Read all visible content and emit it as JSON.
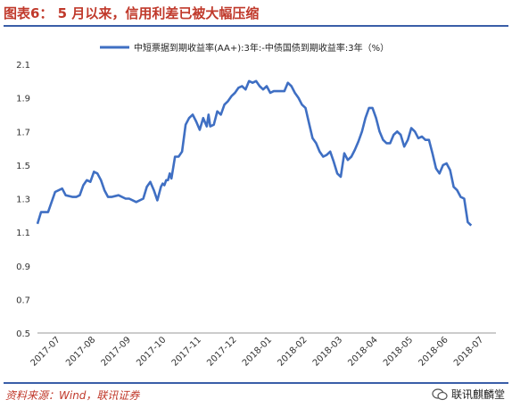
{
  "header": {
    "figure_no": "图表6：",
    "title_text": "5 月以来，信用利差已被大幅压缩"
  },
  "colors": {
    "title": "#c0392b",
    "rule": "#3a5ea8",
    "series": "#3f6fc3",
    "source": "#c0392b"
  },
  "footer": {
    "source": "资料来源：Wind，联讯证券",
    "watermark": "联讯麒麟堂",
    "watermark_icon": "wechat-icon"
  },
  "chart_data": {
    "type": "line",
    "title": "",
    "xlabel": "",
    "ylabel": "",
    "ylim": [
      0.5,
      2.1
    ],
    "yticks": [
      "0.5",
      "0.7",
      "0.9",
      "1.1",
      "1.3",
      "1.5",
      "1.7",
      "1.9",
      "2.1"
    ],
    "xticks": [
      "2017-07",
      "2017-08",
      "2017-09",
      "2017-10",
      "2017-11",
      "2017-12",
      "2018-01",
      "2018-02",
      "2018-03",
      "2018-04",
      "2018-05",
      "2018-06",
      "2018-07"
    ],
    "grid": false,
    "legend": "top",
    "series": [
      {
        "name": "中短票据到期收益率(AA+):3年:-中债国债到期收益率:3年（%）",
        "x": [
          0,
          0.1,
          0.3,
          0.5,
          0.7,
          0.8,
          1.0,
          1.1,
          1.2,
          1.3,
          1.4,
          1.5,
          1.6,
          1.7,
          1.8,
          1.9,
          2.0,
          2.1,
          2.3,
          2.5,
          2.6,
          2.8,
          3.0,
          3.1,
          3.2,
          3.3,
          3.4,
          3.5,
          3.55,
          3.6,
          3.65,
          3.7,
          3.75,
          3.8,
          3.9,
          4.0,
          4.1,
          4.2,
          4.3,
          4.4,
          4.5,
          4.6,
          4.7,
          4.8,
          4.85,
          4.9,
          5.0,
          5.1,
          5.2,
          5.3,
          5.4,
          5.5,
          5.6,
          5.7,
          5.8,
          5.9,
          6.0,
          6.1,
          6.2,
          6.3,
          6.4,
          6.5,
          6.6,
          6.7,
          6.8,
          6.9,
          7.0,
          7.1,
          7.2,
          7.3,
          7.4,
          7.5,
          7.6,
          7.7,
          7.8,
          7.9,
          8.0,
          8.1,
          8.2,
          8.3,
          8.4,
          8.5,
          8.6,
          8.7,
          8.8,
          8.9,
          9.0,
          9.1,
          9.2,
          9.3,
          9.4,
          9.5,
          9.6,
          9.7,
          9.8,
          9.9,
          10.0,
          10.1,
          10.2,
          10.3,
          10.4,
          10.5,
          10.6,
          10.7,
          10.8,
          10.9,
          11.0,
          11.1,
          11.2,
          11.3,
          11.4,
          11.5,
          11.6,
          11.7,
          11.8,
          11.9,
          12.0,
          12.1,
          12.2,
          12.3
        ],
        "values": [
          1.15,
          1.22,
          1.22,
          1.34,
          1.36,
          1.32,
          1.31,
          1.31,
          1.32,
          1.38,
          1.41,
          1.4,
          1.46,
          1.45,
          1.41,
          1.35,
          1.31,
          1.31,
          1.32,
          1.3,
          1.3,
          1.28,
          1.3,
          1.37,
          1.4,
          1.35,
          1.29,
          1.37,
          1.39,
          1.38,
          1.41,
          1.41,
          1.45,
          1.42,
          1.55,
          1.55,
          1.58,
          1.74,
          1.78,
          1.8,
          1.76,
          1.71,
          1.78,
          1.73,
          1.8,
          1.73,
          1.74,
          1.82,
          1.8,
          1.86,
          1.88,
          1.91,
          1.93,
          1.96,
          1.97,
          1.95,
          2.0,
          1.99,
          2.0,
          1.97,
          1.95,
          1.97,
          1.93,
          1.94,
          1.94,
          1.94,
          1.94,
          1.99,
          1.97,
          1.93,
          1.9,
          1.86,
          1.84,
          1.75,
          1.66,
          1.63,
          1.58,
          1.55,
          1.56,
          1.58,
          1.52,
          1.45,
          1.43,
          1.57,
          1.53,
          1.55,
          1.59,
          1.64,
          1.7,
          1.78,
          1.84,
          1.84,
          1.78,
          1.7,
          1.65,
          1.63,
          1.63,
          1.68,
          1.7,
          1.68,
          1.61,
          1.65,
          1.72,
          1.7,
          1.66,
          1.67,
          1.65,
          1.65,
          1.57,
          1.48,
          1.45,
          1.5,
          1.51,
          1.47,
          1.37,
          1.35,
          1.31,
          1.3,
          1.16,
          1.14
        ]
      }
    ]
  }
}
